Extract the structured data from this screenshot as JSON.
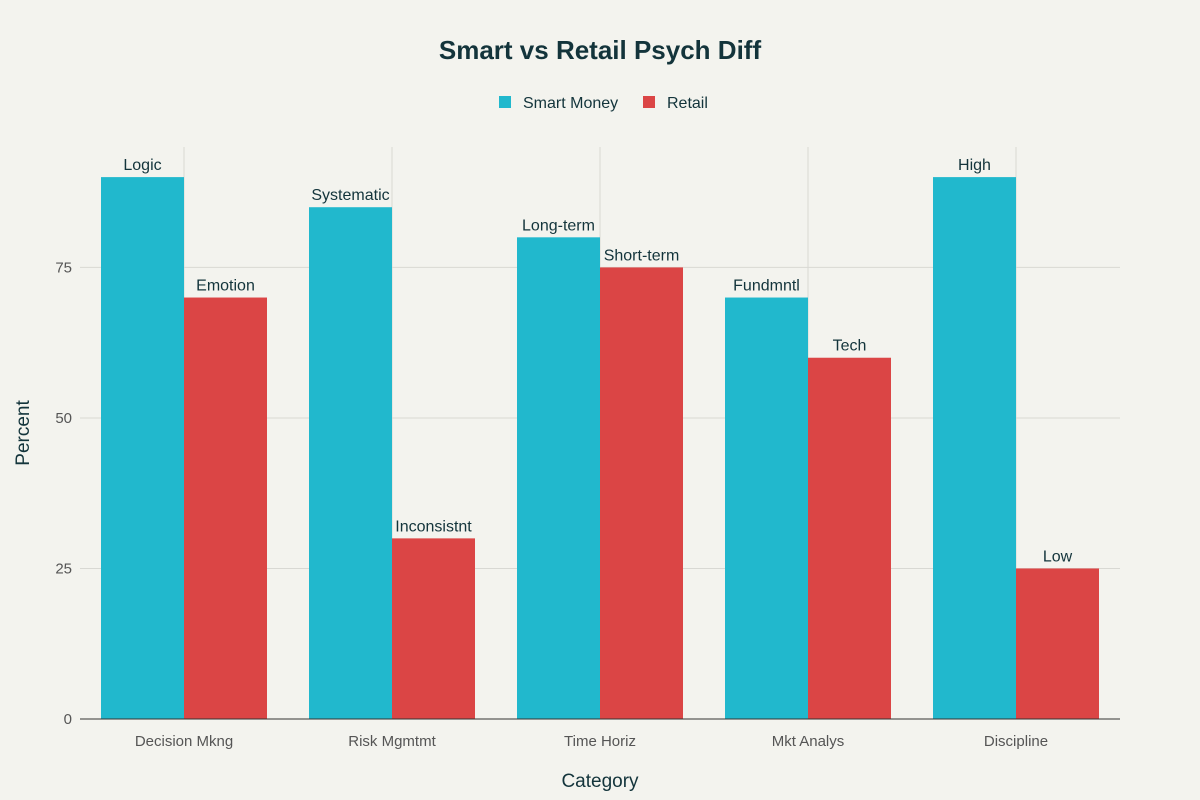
{
  "chart_data": {
    "type": "bar",
    "title": "Smart vs Retail Psych Diff",
    "xlabel": "Category",
    "ylabel": "Percent",
    "categories": [
      "Decision Mkng",
      "Risk Mgmtmt",
      "Time Horiz",
      "Mkt Analys",
      "Discipline"
    ],
    "series": [
      {
        "name": "Smart Money",
        "color": "#21b8cd",
        "values": [
          90,
          85,
          80,
          70,
          90
        ],
        "labels": [
          "Logic",
          "Systematic",
          "Long-term",
          "Fundmntl",
          "High"
        ]
      },
      {
        "name": "Retail",
        "color": "#db4545",
        "values": [
          70,
          30,
          75,
          60,
          25
        ],
        "labels": [
          "Emotion",
          "Inconsistnt",
          "Short-term",
          "Tech",
          "Low"
        ]
      }
    ],
    "ylim": [
      0,
      95
    ],
    "yticks": [
      0,
      25,
      50,
      75
    ],
    "grid": true,
    "legend_position": "top-center"
  }
}
